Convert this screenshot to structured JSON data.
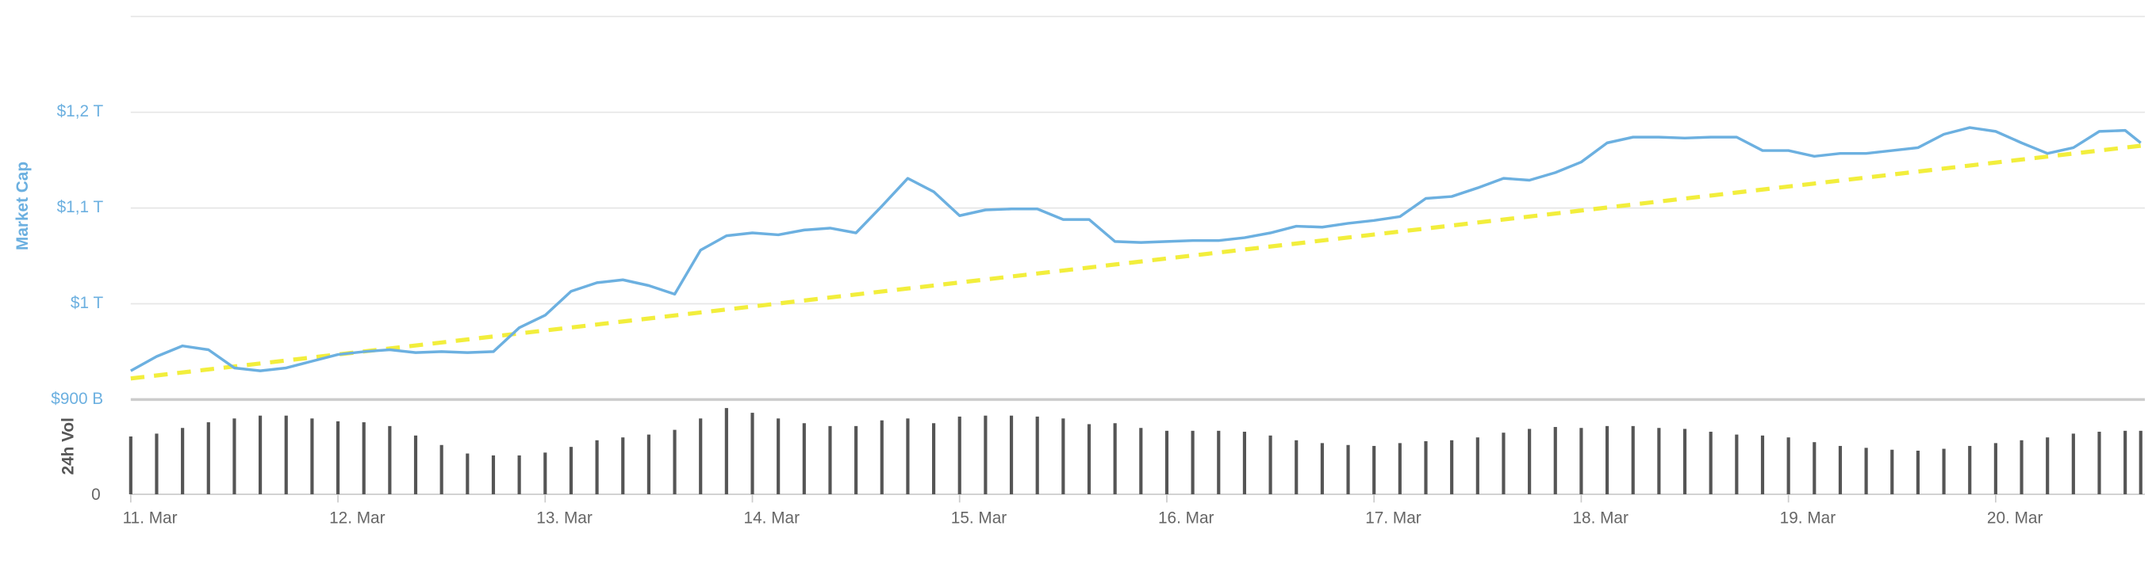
{
  "chart_data": {
    "type": "line",
    "y_label": "Market Cap",
    "y2_label": "24h Vol",
    "xlim": [
      0,
      9.72
    ],
    "xticks": [
      {
        "value": 0,
        "label": "11. Mar"
      },
      {
        "value": 1,
        "label": "12. Mar"
      },
      {
        "value": 2,
        "label": "13. Mar"
      },
      {
        "value": 3,
        "label": "14. Mar"
      },
      {
        "value": 4,
        "label": "15. Mar"
      },
      {
        "value": 5,
        "label": "16. Mar"
      },
      {
        "value": 6,
        "label": "17. Mar"
      },
      {
        "value": 7,
        "label": "18. Mar"
      },
      {
        "value": 8,
        "label": "19. Mar"
      },
      {
        "value": 9,
        "label": "20. Mar"
      }
    ],
    "ylim": [
      900,
      1300
    ],
    "yticks": [
      {
        "value": 900,
        "label": "$900 B"
      },
      {
        "value": 1000,
        "label": "$1 T"
      },
      {
        "value": 1100,
        "label": "$1,1 T"
      },
      {
        "value": 1200,
        "label": "$1,2 T"
      }
    ],
    "y2lim": [
      0,
      100
    ],
    "y2ticks": [
      0
    ],
    "grid": true,
    "x": [
      0,
      0.125,
      0.25,
      0.375,
      0.5,
      0.625,
      0.75,
      0.875,
      1,
      1.125,
      1.25,
      1.375,
      1.5,
      1.625,
      1.75,
      1.875,
      2,
      2.125,
      2.25,
      2.375,
      2.5,
      2.625,
      2.75,
      2.875,
      3,
      3.125,
      3.25,
      3.375,
      3.5,
      3.625,
      3.75,
      3.875,
      4,
      4.125,
      4.25,
      4.375,
      4.5,
      4.625,
      4.75,
      4.875,
      5,
      5.125,
      5.25,
      5.375,
      5.5,
      5.625,
      5.75,
      5.875,
      6,
      6.125,
      6.25,
      6.375,
      6.5,
      6.625,
      6.75,
      6.875,
      7,
      7.125,
      7.25,
      7.375,
      7.5,
      7.625,
      7.75,
      7.875,
      8,
      8.125,
      8.25,
      8.375,
      8.5,
      8.625,
      8.75,
      8.875,
      9,
      9.125,
      9.25,
      9.375,
      9.5,
      9.625,
      9.7
    ],
    "series": [
      {
        "type": "line",
        "color": "#6cb0e0",
        "values": [
          930,
          945,
          956,
          952,
          933,
          930,
          933,
          940,
          947,
          950,
          952,
          949,
          950,
          949,
          950,
          975,
          988,
          1013,
          1022,
          1025,
          1019,
          1010,
          1056,
          1071,
          1074,
          1072,
          1077,
          1079,
          1074,
          1102,
          1131,
          1117,
          1092,
          1098,
          1099,
          1099,
          1088,
          1088,
          1065,
          1064,
          1065,
          1066,
          1066,
          1069,
          1074,
          1081,
          1080,
          1084,
          1087,
          1091,
          1110,
          1112,
          1121,
          1131,
          1129,
          1137,
          1148,
          1168,
          1174,
          1174,
          1173,
          1174,
          1174,
          1160,
          1160,
          1154,
          1157,
          1157,
          1160,
          1163,
          1177,
          1184,
          1180,
          1168,
          1157,
          1163,
          1180,
          1181,
          1168
        ]
      },
      {
        "type": "bar",
        "axis": "y2",
        "color": "#555555",
        "values": [
          61,
          64,
          70,
          76,
          80,
          83,
          83,
          80,
          77,
          76,
          72,
          62,
          52,
          43,
          41,
          41,
          44,
          50,
          57,
          60,
          63,
          68,
          80,
          91,
          86,
          80,
          75,
          72,
          72,
          78,
          80,
          75,
          82,
          83,
          83,
          82,
          80,
          74,
          75,
          70,
          67,
          67,
          67,
          66,
          62,
          57,
          54,
          52,
          51,
          54,
          56,
          57,
          60,
          65,
          69,
          71,
          70,
          72,
          72,
          70,
          69,
          66,
          63,
          62,
          60,
          55,
          51,
          49,
          47,
          46,
          48,
          51,
          54,
          57,
          60,
          64,
          66,
          67,
          67
        ]
      }
    ],
    "trend": {
      "x": [
        0,
        9.7
      ],
      "values": [
        922,
        1165
      ],
      "color": "#f2ee3c"
    }
  }
}
